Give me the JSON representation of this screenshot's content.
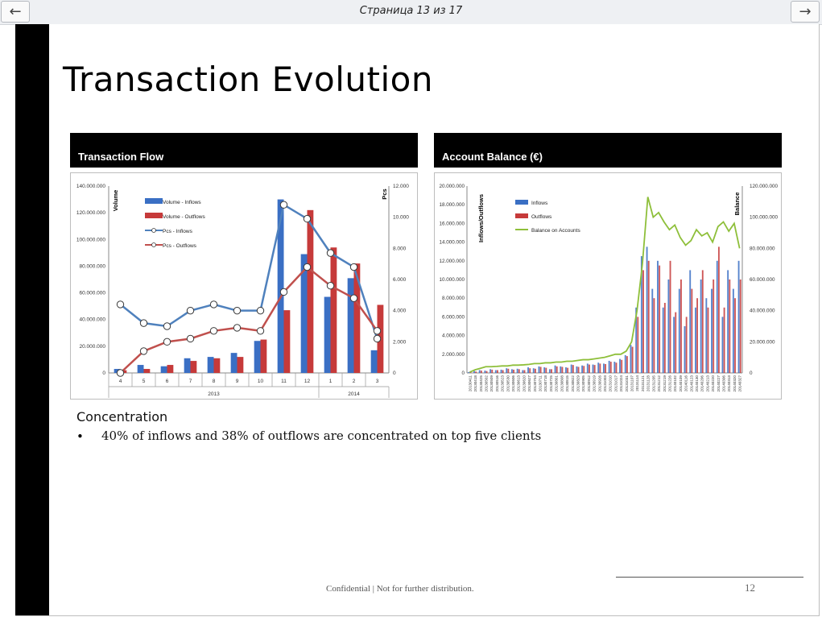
{
  "viewer": {
    "page_indicator": "Страница 13 из 17",
    "prev_icon": "arrow-left-icon",
    "next_icon": "arrow-right-icon"
  },
  "slide": {
    "title": "Transaction Evolution",
    "flow_panel_title": "Transaction Flow",
    "balance_panel_title": "Account Balance (€)",
    "concentration_title": "Concentration",
    "bullet_symbol": "•",
    "concentration_bullet": "40% of inflows and 38% of outflows are concentrated on top five clients",
    "footer": "Confidential | Not for further distribution.",
    "page_number": "12"
  },
  "chart_data": [
    {
      "type": "bar",
      "name": "transaction-flow",
      "categories": [
        "4",
        "5",
        "6",
        "7",
        "8",
        "9",
        "10",
        "11",
        "12",
        "1",
        "2",
        "3"
      ],
      "group_labels": [
        {
          "label": "2013",
          "from": 0,
          "to": 8
        },
        {
          "label": "2014",
          "from": 9,
          "to": 11
        }
      ],
      "ylabel": "Volume",
      "y2label": "Pcs",
      "ylim": [
        0,
        140000000
      ],
      "y_ticks": [
        "0",
        "20.000.000",
        "40.000.000",
        "60.000.000",
        "80.000.000",
        "100.000.000",
        "120.000.000",
        "140.000.000"
      ],
      "y2lim": [
        0,
        12000
      ],
      "y2_ticks": [
        "0",
        "2.000",
        "4.000",
        "6.000",
        "8.000",
        "10.000",
        "12.000"
      ],
      "legend": [
        "Volume - Inflows",
        "Volume - Outflows",
        "Pcs - Inflows",
        "Pcs - Outflows"
      ],
      "series": [
        {
          "name": "Volume - Inflows",
          "kind": "bar",
          "axis": "left",
          "color": "#3a6fc4",
          "values": [
            3000000,
            6000000,
            5000000,
            11000000,
            12000000,
            15000000,
            24000000,
            130000000,
            89000000,
            57000000,
            71000000,
            17000000
          ]
        },
        {
          "name": "Volume - Outflows",
          "kind": "bar",
          "axis": "left",
          "color": "#c63a3a",
          "values": [
            2000000,
            3000000,
            6000000,
            9000000,
            11000000,
            12000000,
            25000000,
            47000000,
            122000000,
            94000000,
            82000000,
            51000000
          ]
        },
        {
          "name": "Pcs - Inflows",
          "kind": "line",
          "axis": "right",
          "color": "#4f81bd",
          "values": [
            4400,
            3200,
            3000,
            4000,
            4400,
            4000,
            4000,
            10800,
            9900,
            7700,
            6800,
            2200
          ]
        },
        {
          "name": "Pcs - Outflows",
          "kind": "line",
          "axis": "right",
          "color": "#c0504d",
          "values": [
            0,
            1400,
            2000,
            2200,
            2700,
            2900,
            2700,
            5200,
            6800,
            5600,
            4800,
            2700
          ]
        }
      ]
    },
    {
      "type": "bar",
      "name": "account-balance",
      "ylabel": "Inflows/Outflows",
      "y2label": "Balance",
      "ylim": [
        0,
        20000000
      ],
      "y_ticks": [
        "0",
        "2.000.000",
        "4.000.000",
        "6.000.000",
        "8.000.000",
        "10.000.000",
        "12.000.000",
        "14.000.000",
        "16.000.000",
        "18.000.000",
        "20.000.000"
      ],
      "y2lim": [
        0,
        120000000
      ],
      "y2_ticks": [
        "0",
        "20.000.000",
        "40.000.000",
        "60.000.000",
        "80.000.000",
        "100.000.000",
        "120.000.000"
      ],
      "x_ticks": [
        "20130411",
        "20130418",
        "20130425",
        "20130502",
        "20130509",
        "20130516",
        "20130523",
        "20130530",
        "20130606",
        "20130613",
        "20130620",
        "20130627",
        "20130704",
        "20130711",
        "20130718",
        "20130725",
        "20130801",
        "20130808",
        "20130815",
        "20130822",
        "20130829",
        "20130905",
        "20130912",
        "20130919",
        "20130926",
        "20131003",
        "20131010",
        "20131017",
        "20131024",
        "20131031",
        "20131107",
        "20131114",
        "20131121",
        "20131128",
        "20131205",
        "20131212",
        "20131219",
        "20131226",
        "20140102",
        "20140109",
        "20140116",
        "20140123",
        "20140130",
        "20140206",
        "20140213",
        "20140220",
        "20140227",
        "20140306",
        "20140313",
        "20140320",
        "20140327"
      ],
      "legend": [
        "Inflows",
        "Outflows",
        "Balance on Accounts"
      ],
      "series": [
        {
          "name": "Inflows",
          "kind": "bar",
          "axis": "left",
          "color": "#3a6fc4",
          "values": [
            100000,
            200000,
            300000,
            250000,
            400000,
            300000,
            350000,
            500000,
            400000,
            450000,
            300000,
            600000,
            500000,
            700000,
            600000,
            400000,
            800000,
            700000,
            600000,
            900000,
            700000,
            800000,
            1000000,
            900000,
            1100000,
            1000000,
            1300000,
            1200000,
            1500000,
            1900000,
            3000000,
            7000000,
            12500000,
            13500000,
            9000000,
            12000000,
            7000000,
            10000000,
            6000000,
            9000000,
            5000000,
            11000000,
            7000000,
            10000000,
            8000000,
            9000000,
            12000000,
            6000000,
            11000000,
            9000000,
            12000000
          ]
        },
        {
          "name": "Outflows",
          "kind": "bar",
          "axis": "left",
          "color": "#c63a3a",
          "values": [
            80000,
            150000,
            250000,
            200000,
            350000,
            300000,
            300000,
            450000,
            350000,
            400000,
            300000,
            500000,
            450000,
            650000,
            550000,
            400000,
            700000,
            650000,
            550000,
            850000,
            650000,
            750000,
            900000,
            850000,
            1000000,
            950000,
            1200000,
            1100000,
            1400000,
            1800000,
            2800000,
            6000000,
            11000000,
            12000000,
            8000000,
            11500000,
            7500000,
            12000000,
            6500000,
            10000000,
            6000000,
            9000000,
            8000000,
            11000000,
            7000000,
            10000000,
            13500000,
            7000000,
            10000000,
            8000000,
            10000000
          ]
        },
        {
          "name": "Balance on Accounts",
          "kind": "line",
          "axis": "right",
          "color": "#8ebf3a",
          "values": [
            500000,
            2000000,
            3000000,
            4000000,
            4000000,
            4200000,
            4500000,
            4500000,
            5000000,
            5000000,
            5200000,
            5500000,
            6000000,
            6000000,
            6500000,
            6500000,
            7000000,
            7000000,
            7500000,
            7500000,
            8000000,
            8500000,
            8500000,
            9000000,
            9500000,
            10000000,
            11000000,
            12000000,
            12000000,
            14000000,
            20000000,
            40000000,
            70000000,
            113000000,
            100000000,
            103000000,
            97000000,
            92000000,
            95000000,
            87000000,
            82000000,
            85000000,
            92000000,
            88000000,
            90000000,
            84000000,
            94000000,
            97000000,
            91000000,
            96000000,
            80000000
          ]
        }
      ]
    }
  ]
}
